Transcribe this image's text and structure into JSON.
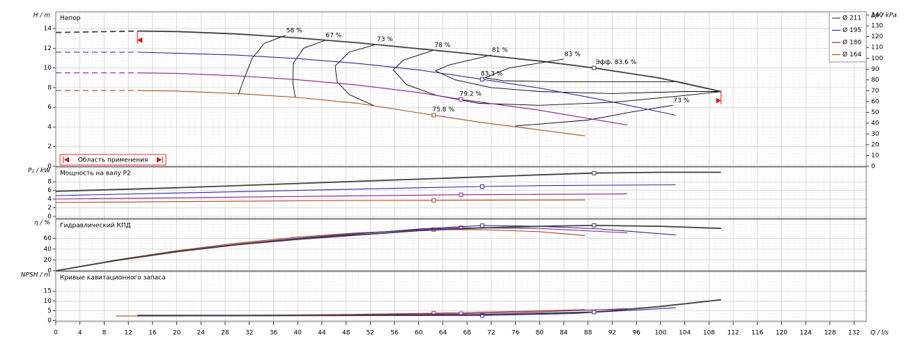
{
  "chart_data": {
    "type": "line",
    "x_label": "Q / l/s",
    "xlim": [
      0,
      134
    ],
    "xticks": [
      0,
      4,
      8,
      12,
      16,
      20,
      24,
      28,
      32,
      36,
      40,
      44,
      48,
      52,
      56,
      60,
      64,
      68,
      72,
      76,
      80,
      84,
      88,
      92,
      96,
      100,
      104,
      108,
      112,
      116,
      120,
      124,
      128,
      132
    ],
    "series": [
      {
        "name": "Ø 211",
        "color": "#404040",
        "bep": {
          "x": 89,
          "label": "Эфф. 83.6 %"
        }
      },
      {
        "name": "Ø 195",
        "color": "#2b2b9a",
        "bep": {
          "x": 70.5,
          "label": "83.3 %"
        }
      },
      {
        "name": "Ø 180",
        "color": "#8e1c8e",
        "bep": {
          "x": 67,
          "label": "79.2 %"
        }
      },
      {
        "name": "Ø 164",
        "color": "#a4501e",
        "bep": {
          "x": 62.5,
          "label": "75.8 %"
        }
      }
    ],
    "panels": [
      {
        "title": "Напор",
        "ylabel": "H / m",
        "ylim": [
          0,
          15.7
        ],
        "yticks": [
          0,
          2,
          4,
          6,
          8,
          10,
          12,
          14
        ],
        "y2label": "Δp / kPa",
        "y2lim": [
          0,
          143
        ],
        "y2ticks": [
          0,
          10,
          20,
          30,
          40,
          50,
          60,
          70,
          80,
          90,
          100,
          110,
          120,
          130,
          140
        ],
        "curves": [
          {
            "x": [
              0,
              13.5,
              20,
              30,
              40,
              50,
              60,
              70,
              80,
              89,
              100,
              110
            ],
            "values": [
              13.6,
              13.75,
              13.7,
              13.45,
              13.05,
              12.55,
              11.95,
              11.35,
              10.7,
              10.0,
              8.95,
              7.6
            ],
            "bep": 10.0
          },
          {
            "x": [
              0,
              13.5,
              20,
              30,
              40,
              50,
              60,
              70.5,
              80,
              90,
              102.5
            ],
            "values": [
              11.6,
              11.6,
              11.5,
              11.3,
              10.95,
              10.45,
              9.8,
              8.85,
              7.95,
              6.8,
              5.2
            ],
            "bep": 8.85
          },
          {
            "x": [
              0,
              13.5,
              20,
              30,
              40,
              50,
              60,
              67,
              80,
              94.5
            ],
            "values": [
              9.5,
              9.5,
              9.45,
              9.2,
              8.8,
              8.25,
              7.5,
              6.8,
              5.7,
              4.2
            ],
            "bep": 6.8
          },
          {
            "x": [
              0,
              13.5,
              20,
              30,
              40,
              50,
              62.5,
              70,
              80,
              87.5
            ],
            "values": [
              7.7,
              7.7,
              7.65,
              7.4,
              7.0,
              6.4,
              5.2,
              4.5,
              3.7,
              3.1
            ],
            "bep": 5.2
          }
        ],
        "iso_efficiency": [
          {
            "label": "58 %",
            "x": [
              38,
              34.5,
              32.5,
              31.2,
              30.2
            ],
            "y": [
              13.3,
              12.5,
              11,
              9,
              7.3
            ]
          },
          {
            "label": "67 %",
            "x": [
              44.5,
              41,
              39.3,
              39.2,
              39.6
            ],
            "y": [
              12.8,
              12,
              10.5,
              8.5,
              7.0
            ]
          },
          {
            "label": "73 %",
            "x": [
              53,
              48.5,
              46.2,
              46.5,
              48.5,
              52.5
            ],
            "y": [
              12.4,
              11.6,
              10.2,
              8.6,
              7.3,
              6.2
            ]
          },
          {
            "label": "78 %",
            "x": [
              62.5,
              57.5,
              55.8,
              58,
              63,
              70,
              80,
              92,
              104,
              110
            ],
            "y": [
              11.8,
              10.8,
              9.8,
              8.3,
              7.2,
              6.4,
              6.2,
              6.5,
              7.2,
              7.6
            ]
          },
          {
            "label": "81 %",
            "x": [
              72,
              65,
              62.8,
              66,
              72,
              80,
              92,
              104,
              110
            ],
            "y": [
              11.3,
              10.3,
              9.7,
              8.8,
              8.0,
              7.6,
              7.4,
              7.6,
              7.6
            ]
          },
          {
            "label": "83 %",
            "x": [
              84,
              75,
              71,
              74,
              82,
              93,
              103,
              110
            ],
            "y": [
              10.9,
              10.0,
              9.0,
              8.7,
              8.6,
              8.6,
              8.6,
              7.6
            ]
          },
          {
            "label": "73 %",
            "x": [
              102,
              95,
              88,
              76
            ],
            "y": [
              6.2,
              5.5,
              4.7,
              4.1
            ]
          }
        ],
        "range": {
          "label": "Область применения",
          "x": [
            13.5,
            110
          ]
        }
      },
      {
        "title": "Мощность на валу P2",
        "ylabel": "P₂ / kW",
        "ylim": [
          -0.5,
          11.4
        ],
        "yticks": [
          0,
          2,
          4,
          6,
          8
        ],
        "curves": [
          {
            "x": [
              0,
              20,
              40,
              60,
              80,
              89,
              100,
              110
            ],
            "values": [
              5.8,
              6.6,
              7.6,
              8.6,
              9.6,
              10.0,
              10.2,
              10.2
            ],
            "bep": 10.0
          },
          {
            "x": [
              0,
              20,
              40,
              60,
              70.5,
              80,
              102.5
            ],
            "values": [
              4.8,
              5.4,
              6.0,
              6.6,
              6.9,
              7.1,
              7.3
            ],
            "bep": 6.9
          },
          {
            "x": [
              0,
              20,
              40,
              60,
              67,
              80,
              94.5
            ],
            "values": [
              4.0,
              4.3,
              4.6,
              4.9,
              5.0,
              5.1,
              5.2
            ],
            "bep": 5.0
          },
          {
            "x": [
              0,
              20,
              40,
              62.5,
              70,
              87.5
            ],
            "values": [
              3.2,
              3.4,
              3.6,
              3.7,
              3.75,
              3.8
            ],
            "bep": 3.7
          }
        ]
      },
      {
        "title": "Гидравлический КПД",
        "ylabel": "η / %",
        "ylim": [
          0,
          95
        ],
        "yticks": [
          0,
          20,
          40,
          60
        ],
        "curves": [
          {
            "x": [
              0,
              10,
              20,
              30,
              40,
              50,
              60,
              70,
              80,
              89,
              100,
              110
            ],
            "values": [
              0,
              19,
              35,
              48,
              58,
              66,
              74,
              79,
              82,
              83.6,
              82,
              78
            ],
            "bep": 83.6
          },
          {
            "x": [
              0,
              10,
              20,
              30,
              40,
              50,
              60,
              70.5,
              80,
              90,
              102.5
            ],
            "values": [
              0,
              19,
              35,
              48,
              59,
              68,
              77,
              83.3,
              82,
              77,
              66
            ],
            "bep": 83.3
          },
          {
            "x": [
              0,
              10,
              20,
              30,
              40,
              50,
              60,
              67,
              80,
              94.5
            ],
            "values": [
              0,
              19,
              36,
              49,
              60,
              69,
              76,
              79.2,
              78,
              70
            ],
            "bep": 79.2
          },
          {
            "x": [
              0,
              10,
              20,
              30,
              40,
              50,
              62.5,
              70,
              80,
              87.5
            ],
            "values": [
              0,
              20,
              37,
              51,
              62,
              70,
              75.8,
              76,
              72,
              65
            ],
            "bep": 75.8
          }
        ]
      },
      {
        "title": "Кривые кавитационного запаса",
        "ylabel": "NPSH / m",
        "ylim": [
          -0.5,
          25
        ],
        "yticks": [
          0,
          5,
          10,
          15
        ],
        "curves": [
          {
            "x": [
              13.5,
              30,
              50,
              70,
              89,
              100,
              110
            ],
            "values": [
              2.6,
              2.6,
              2.6,
              3.0,
              4.3,
              7.2,
              10.6
            ],
            "bep": 4.3
          },
          {
            "x": [
              13.5,
              30,
              50,
              70.5,
              85,
              102.5
            ],
            "values": [
              2.3,
              2.4,
              2.5,
              2.6,
              3.5,
              6.5
            ],
            "bep": 2.6
          },
          {
            "x": [
              13.5,
              30,
              50,
              67,
              80,
              94.5
            ],
            "values": [
              2.4,
              2.6,
              3.0,
              3.5,
              4.5,
              6.0
            ],
            "bep": 3.5
          },
          {
            "x": [
              10,
              30,
              50,
              62.5,
              75,
              87.5
            ],
            "values": [
              2.3,
              2.6,
              3.2,
              3.8,
              4.6,
              5.6
            ],
            "bep": 3.8
          }
        ]
      }
    ]
  }
}
